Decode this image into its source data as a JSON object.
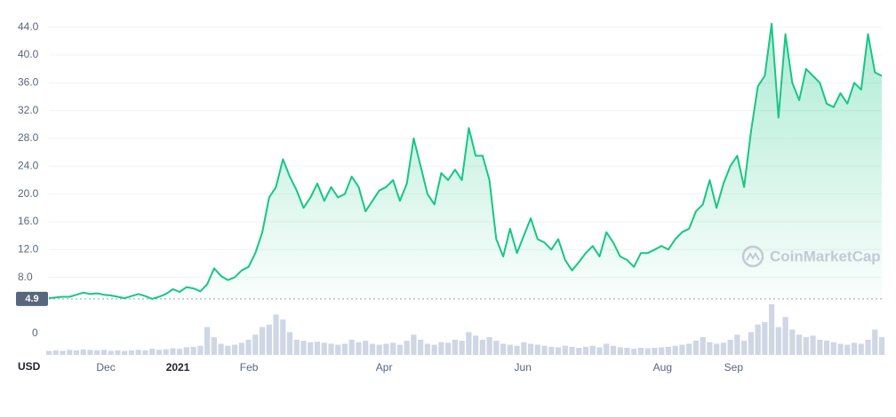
{
  "chart_data": {
    "type": "line",
    "currency_label": "USD",
    "watermark": "CoinMarketCap",
    "color": "#16c784",
    "volume_color": "#cfd6e4",
    "baseline": 4.9,
    "values": [
      5.0,
      5.1,
      5.2,
      5.2,
      5.5,
      5.8,
      5.6,
      5.7,
      5.5,
      5.4,
      5.2,
      5.0,
      5.3,
      5.6,
      5.3,
      4.9,
      5.2,
      5.6,
      6.3,
      5.9,
      6.6,
      6.4,
      6.0,
      7.0,
      9.3,
      8.2,
      7.6,
      8.0,
      9.0,
      9.5,
      11.5,
      14.5,
      19.5,
      21,
      25,
      22.5,
      20.5,
      18.0,
      19.5,
      21.5,
      19.0,
      21.0,
      19.5,
      20,
      22.5,
      21,
      17.5,
      19,
      20.5,
      21,
      22.0,
      19,
      21.5,
      28,
      24,
      20,
      18.5,
      23,
      22,
      23.5,
      22,
      29.5,
      25.5,
      25.5,
      22,
      13.5,
      11,
      15,
      11.5,
      14,
      16.5,
      13.5,
      13.0,
      12.0,
      13.5,
      10.5,
      9.0,
      10.2,
      11.5,
      12.5,
      11,
      14.5,
      13,
      11.0,
      10.5,
      9.5,
      11.5,
      11.5,
      12.0,
      12.5,
      12.0,
      13.5,
      14.5,
      15.0,
      17.5,
      18.5,
      22,
      18.0,
      21.5,
      24,
      25.5,
      21,
      29,
      35.5,
      37,
      44.5,
      31,
      43,
      36,
      33.5,
      38,
      37,
      36,
      33,
      32.5,
      34.5,
      33,
      36,
      35,
      43,
      37.5,
      37
    ],
    "volume": [
      8,
      9,
      8,
      10,
      9,
      11,
      10,
      9,
      10,
      8,
      9,
      8,
      9,
      10,
      9,
      12,
      10,
      11,
      13,
      12,
      15,
      16,
      18,
      55,
      35,
      22,
      18,
      20,
      24,
      30,
      40,
      55,
      60,
      80,
      70,
      45,
      30,
      28,
      25,
      26,
      24,
      22,
      20,
      22,
      30,
      25,
      28,
      22,
      20,
      22,
      24,
      20,
      28,
      40,
      30,
      22,
      20,
      25,
      24,
      30,
      28,
      45,
      38,
      30,
      35,
      28,
      22,
      20,
      18,
      25,
      22,
      20,
      18,
      16,
      15,
      18,
      16,
      14,
      16,
      18,
      15,
      22,
      18,
      15,
      14,
      12,
      14,
      13,
      14,
      15,
      16,
      18,
      20,
      22,
      28,
      35,
      25,
      22,
      24,
      30,
      40,
      28,
      45,
      60,
      65,
      100,
      55,
      75,
      50,
      40,
      35,
      38,
      30,
      28,
      25,
      22,
      20,
      24,
      22,
      30,
      50,
      35
    ],
    "ylim": [
      4.5,
      46
    ],
    "yticks": [
      {
        "value": 8,
        "label": "8.0"
      },
      {
        "value": 12,
        "label": "12.0"
      },
      {
        "value": 16,
        "label": "16.0"
      },
      {
        "value": 20,
        "label": "20.0"
      },
      {
        "value": 24,
        "label": "24.0"
      },
      {
        "value": 28,
        "label": "28.0"
      },
      {
        "value": 32,
        "label": "32.0"
      },
      {
        "value": 36,
        "label": "36.0"
      },
      {
        "value": 40,
        "label": "40.0"
      },
      {
        "value": 44,
        "label": "44.0"
      }
    ],
    "y2lim": [
      0,
      100
    ],
    "y2ticks": [
      0
    ],
    "xlim": [
      0,
      121
    ],
    "xticks": [
      {
        "value": 8.27,
        "label": "Dec"
      },
      {
        "value": 18.73,
        "label": "2021"
      },
      {
        "value": 29.07,
        "label": "Feb"
      },
      {
        "value": 48.7,
        "label": "Apr"
      },
      {
        "value": 68.86,
        "label": "Jun"
      },
      {
        "value": 89.15,
        "label": "Aug"
      },
      {
        "value": 99.48,
        "label": "Sep"
      }
    ],
    "grid": true
  }
}
